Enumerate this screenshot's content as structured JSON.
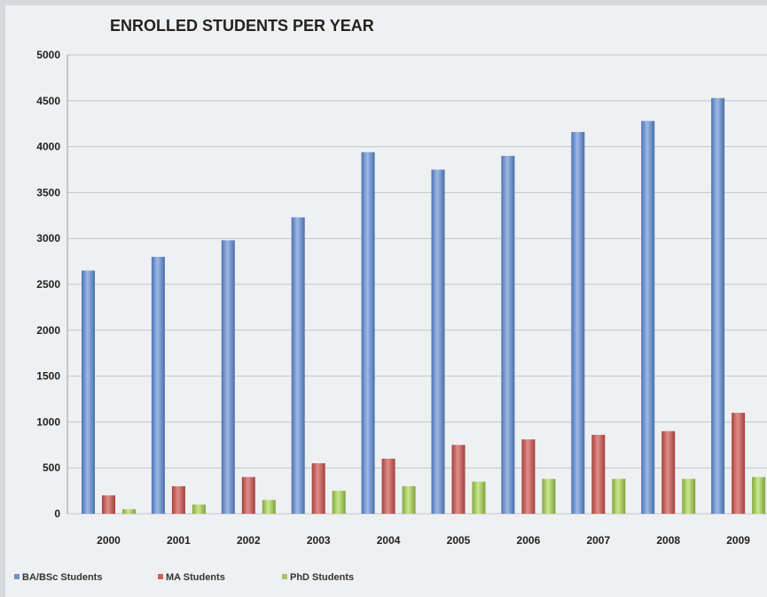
{
  "chart_data": {
    "type": "bar",
    "title": "ENROLLED STUDENTS PER YEAR",
    "categories": [
      "2000",
      "2001",
      "2002",
      "2003",
      "2004",
      "2005",
      "2006",
      "2007",
      "2008",
      "2009"
    ],
    "series": [
      {
        "name": "BA/BSc Students",
        "color": "#6f93cc",
        "values": [
          2650,
          2800,
          2980,
          3230,
          3940,
          3750,
          3900,
          4160,
          4280,
          4530
        ]
      },
      {
        "name": "MA Students",
        "color": "#c9605c",
        "values": [
          200,
          300,
          400,
          550,
          600,
          750,
          810,
          860,
          900,
          1100
        ]
      },
      {
        "name": "PhD Students",
        "color": "#a4c860",
        "values": [
          50,
          100,
          150,
          250,
          300,
          350,
          380,
          380,
          380,
          400
        ]
      }
    ],
    "yticks": [
      "0",
      "500",
      "1000",
      "1500",
      "2000",
      "2500",
      "3000",
      "3500",
      "4000",
      "4500",
      "5000"
    ],
    "ylim": [
      0,
      5000
    ],
    "grid": true,
    "legend_position": "bottom-left"
  }
}
